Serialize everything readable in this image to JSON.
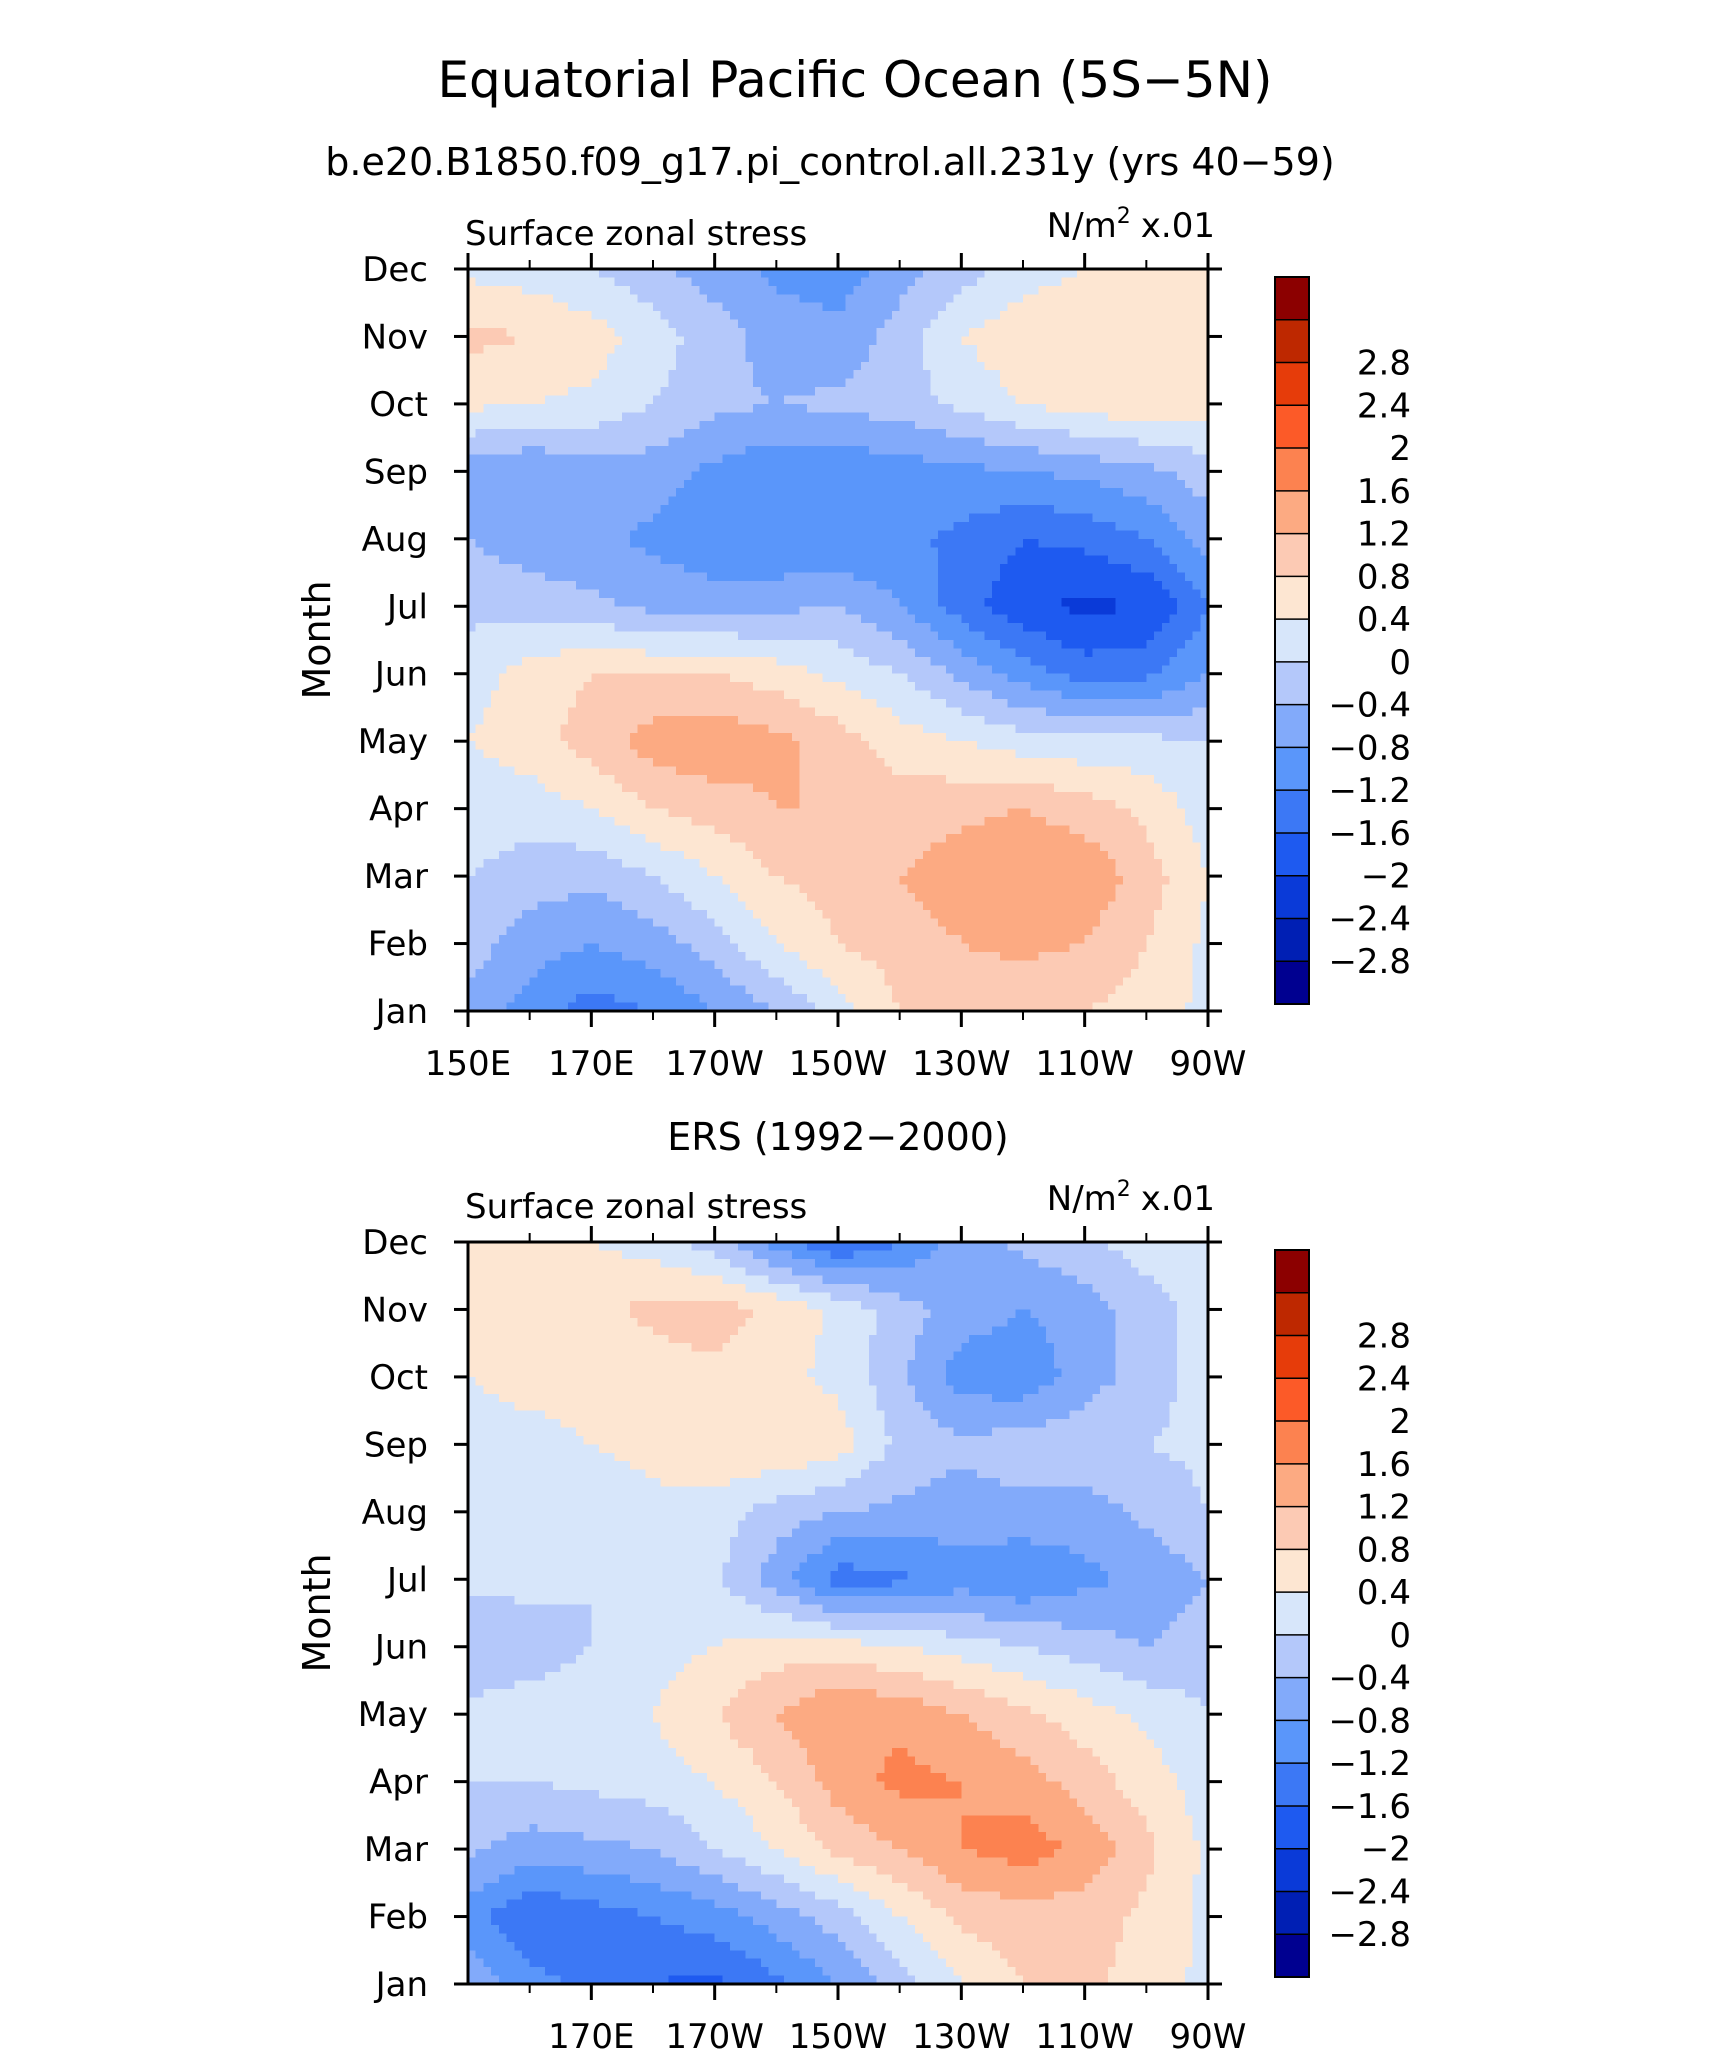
{
  "figure": {
    "title": "Equatorial Pacific Ocean (5S−5N)"
  },
  "colorbar": {
    "colors": [
      "#000090",
      "#001fb4",
      "#0a3ad8",
      "#1e5af0",
      "#3c78f5",
      "#5a96fa",
      "#82aafa",
      "#b4c8fa",
      "#d7e6fa",
      "#fde6d2",
      "#fccab4",
      "#fcaa82",
      "#fc8250",
      "#fc5a28",
      "#e63c0a",
      "#be2800",
      "#8c0000"
    ],
    "labels": [
      "−2.8",
      "−2.4",
      "−2",
      "−1.6",
      "−1.2",
      "−0.8",
      "−0.4",
      "0",
      "0.4",
      "0.8",
      "1.2",
      "1.6",
      "2",
      "2.4",
      "2.8"
    ]
  },
  "chart_data": [
    {
      "type": "heatmap",
      "title": "b.e20.B1850.f09_g17.pi_control.all.231y (yrs 40−59)",
      "left_label": "Surface zonal stress",
      "units_base": "N/m",
      "units_exp": "2",
      "units_scale": "x.01",
      "ylabel": "Month",
      "xlim": [
        150,
        270
      ],
      "y_ticks": [
        "Jan",
        "Feb",
        "Mar",
        "Apr",
        "May",
        "Jun",
        "Jul",
        "Aug",
        "Sep",
        "Oct",
        "Nov",
        "Dec"
      ],
      "x_ticks": [
        {
          "value": 150,
          "label": "150E"
        },
        {
          "value": 170,
          "label": "170E"
        },
        {
          "value": 190,
          "label": "170W"
        },
        {
          "value": 210,
          "label": "150W"
        },
        {
          "value": 230,
          "label": "130W"
        },
        {
          "value": 250,
          "label": "110W"
        },
        {
          "value": 270,
          "label": "90W"
        }
      ],
      "lon": [
        150,
        160,
        170,
        180,
        190,
        200,
        210,
        220,
        230,
        240,
        250,
        260,
        270
      ],
      "values": [
        [
          -0.6,
          -1.0,
          -1.4,
          -1.2,
          -0.8,
          -0.4,
          0.2,
          0.8,
          1.0,
          0.9,
          0.8,
          0.6,
          0.3
        ],
        [
          -0.2,
          -0.6,
          -0.8,
          -0.6,
          -0.2,
          0.4,
          0.8,
          1.0,
          1.2,
          1.3,
          1.2,
          0.8,
          0.3
        ],
        [
          0.0,
          -0.2,
          -0.3,
          0.0,
          0.4,
          0.8,
          1.0,
          1.2,
          1.4,
          1.6,
          1.5,
          1.0,
          0.4
        ],
        [
          0.2,
          0.2,
          0.4,
          0.8,
          1.0,
          1.2,
          1.2,
          1.0,
          1.1,
          1.2,
          1.0,
          0.7,
          0.2
        ],
        [
          0.4,
          0.6,
          1.0,
          1.4,
          1.5,
          1.3,
          1.0,
          0.6,
          0.4,
          0.2,
          0.1,
          0.1,
          0.0
        ],
        [
          0.2,
          0.6,
          0.8,
          0.8,
          0.8,
          0.6,
          0.3,
          0.0,
          -0.5,
          -1.0,
          -1.4,
          -1.3,
          -0.8
        ],
        [
          -0.1,
          -0.2,
          -0.3,
          -0.5,
          -0.6,
          -0.5,
          -0.4,
          -0.8,
          -1.4,
          -1.9,
          -2.1,
          -2.0,
          -1.2
        ],
        [
          -0.4,
          -0.6,
          -0.7,
          -0.9,
          -1.1,
          -1.2,
          -1.2,
          -1.1,
          -1.3,
          -1.6,
          -1.5,
          -1.2,
          -0.6
        ],
        [
          -0.6,
          -0.8,
          -0.6,
          -0.6,
          -0.9,
          -1.1,
          -1.1,
          -1.0,
          -0.9,
          -0.8,
          -0.7,
          -0.5,
          -0.2
        ],
        [
          0.5,
          0.4,
          0.3,
          0.0,
          -0.3,
          -0.4,
          -0.3,
          -0.2,
          0.1,
          0.4,
          0.6,
          0.7,
          0.6
        ],
        [
          0.9,
          0.8,
          0.6,
          0.2,
          -0.2,
          -0.6,
          -0.7,
          -0.2,
          0.4,
          0.7,
          0.8,
          0.8,
          0.7
        ],
        [
          0.3,
          0.2,
          0.0,
          -0.3,
          -0.6,
          -0.9,
          -1.0,
          -0.6,
          -0.2,
          0.2,
          0.4,
          0.5,
          0.5
        ]
      ]
    },
    {
      "type": "heatmap",
      "title": "ERS (1992−2000)",
      "left_label": "Surface zonal stress",
      "units_base": "N/m",
      "units_exp": "2",
      "units_scale": "x.01",
      "ylabel": "Month",
      "xlim": [
        150,
        270
      ],
      "y_ticks": [
        "Jan",
        "Feb",
        "Mar",
        "Apr",
        "May",
        "Jun",
        "Jul",
        "Aug",
        "Sep",
        "Oct",
        "Nov",
        "Dec"
      ],
      "x_ticks": [
        {
          "value": 170,
          "label": "170E"
        },
        {
          "value": 190,
          "label": "170W"
        },
        {
          "value": 210,
          "label": "150W"
        },
        {
          "value": 230,
          "label": "130W"
        },
        {
          "value": 250,
          "label": "110W"
        },
        {
          "value": 270,
          "label": "90W"
        }
      ],
      "lon": [
        150,
        160,
        170,
        180,
        190,
        200,
        210,
        220,
        230,
        240,
        250,
        260,
        270
      ],
      "values": [
        [
          -0.5,
          -1.0,
          -1.4,
          -1.6,
          -1.7,
          -1.3,
          -0.8,
          -0.2,
          0.4,
          0.8,
          0.9,
          0.6,
          0.3
        ],
        [
          -1.0,
          -1.6,
          -1.4,
          -1.2,
          -1.0,
          -0.6,
          -0.2,
          0.4,
          0.9,
          1.0,
          1.0,
          0.7,
          0.3
        ],
        [
          -0.3,
          -0.6,
          -0.5,
          -0.4,
          0.0,
          0.4,
          0.9,
          1.2,
          1.6,
          1.8,
          1.5,
          0.9,
          0.3
        ],
        [
          0.0,
          0.0,
          0.1,
          0.2,
          0.4,
          0.8,
          1.4,
          1.7,
          1.6,
          1.4,
          1.0,
          0.6,
          0.2
        ],
        [
          0.1,
          0.2,
          0.2,
          0.4,
          0.8,
          1.2,
          1.6,
          1.5,
          1.2,
          0.9,
          0.6,
          0.3,
          0.0
        ],
        [
          -0.3,
          -0.2,
          0.0,
          0.2,
          0.4,
          0.6,
          0.6,
          0.4,
          0.2,
          0.0,
          -0.2,
          -0.4,
          -0.2
        ],
        [
          0.1,
          0.1,
          0.0,
          0.2,
          0.1,
          -0.6,
          -1.4,
          -1.3,
          -1.0,
          -1.2,
          -0.9,
          -0.7,
          -0.4
        ],
        [
          0.2,
          0.3,
          0.2,
          0.3,
          0.2,
          -0.2,
          -0.4,
          -0.5,
          -0.6,
          -0.5,
          -0.6,
          -0.3,
          0.0
        ],
        [
          0.3,
          0.3,
          0.4,
          0.5,
          0.8,
          0.8,
          0.6,
          -0.1,
          -0.3,
          -0.2,
          -0.1,
          0.0,
          0.1
        ],
        [
          0.4,
          0.5,
          0.5,
          0.6,
          0.7,
          0.5,
          0.3,
          -0.3,
          -1.0,
          -1.1,
          -0.6,
          -0.2,
          0.2
        ],
        [
          0.6,
          0.6,
          0.7,
          0.9,
          1.0,
          0.7,
          0.3,
          -0.2,
          -0.6,
          -0.8,
          -0.6,
          -0.2,
          0.2
        ],
        [
          0.5,
          0.5,
          0.4,
          0.2,
          -0.2,
          -1.0,
          -1.6,
          -1.2,
          -0.6,
          -0.3,
          -0.1,
          0.2,
          0.3
        ]
      ]
    }
  ]
}
